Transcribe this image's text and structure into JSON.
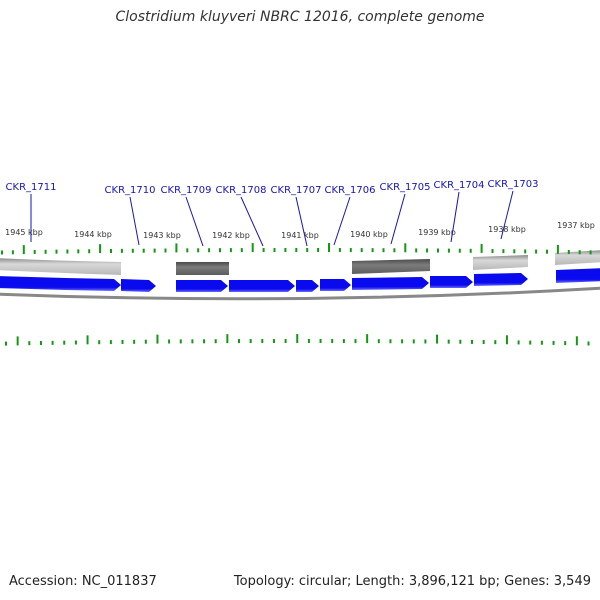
{
  "title": "Clostridium kluyveri NBRC 12016, complete genome",
  "footer": {
    "accession": "Accession: NC_011837",
    "summary": "Topology: circular; Length: 3,896,121 bp; Genes: 3,549"
  },
  "colors": {
    "gene": "#0a0aee",
    "gene_label": "#1414b8",
    "tick": "#119911",
    "scale_label": "#333333",
    "backbone": "#888888"
  },
  "scale_labels": [
    "1945 kbp",
    "1944 kbp",
    "1943 kbp",
    "1942 kbp",
    "1941 kbp",
    "1940 kbp",
    "1939 kbp",
    "1938 kbp",
    "1937 kbp"
  ],
  "gene_labels": [
    "CKR_1711",
    "CKR_1710",
    "CKR_1709",
    "CKR_1708",
    "CKR_1707",
    "CKR_1706",
    "CKR_1705",
    "CKR_1704",
    "CKR_1703"
  ]
}
